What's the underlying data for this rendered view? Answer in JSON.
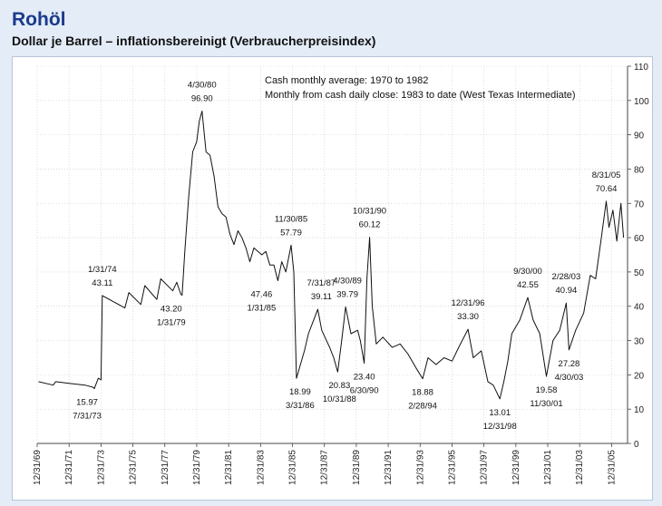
{
  "title": "Rohöl",
  "subtitle": "Dollar je Barrel – inflationsbereinigt (Verbraucherpreisindex)",
  "chart_data": {
    "type": "line",
    "notes": [
      "Cash monthly average: 1970 to 1982",
      "Monthly from cash daily close: 1983 to date (West Texas Intermediate)"
    ],
    "x_range": [
      "1969-12-31",
      "2006-12-31"
    ],
    "ylim": [
      0,
      110
    ],
    "y_ticks": [
      0,
      10,
      20,
      30,
      40,
      50,
      60,
      70,
      80,
      90,
      100,
      110
    ],
    "x_tick_labels": [
      "12/31/69",
      "12/31/71",
      "12/31/73",
      "12/31/75",
      "12/31/77",
      "12/31/79",
      "12/31/81",
      "12/31/83",
      "12/31/85",
      "12/31/87",
      "12/31/89",
      "12/31/91",
      "12/31/93",
      "12/31/95",
      "12/31/97",
      "12/31/99",
      "12/31/01",
      "12/31/03",
      "12/31/05"
    ],
    "y_axis_side": "right",
    "grid": true,
    "line_color": "#111111",
    "series": [
      {
        "x": [
          "1970-01-31",
          "1970-12-31",
          "1971-02-28",
          "1971-12-31",
          "1972-12-31",
          "1973-06-30",
          "1973-07-31",
          "1973-10-31",
          "1973-12-31",
          "1974-01-31",
          "1975-06-30",
          "1975-09-30",
          "1976-06-30",
          "1976-09-30",
          "1977-06-30",
          "1977-09-30",
          "1978-06-30",
          "1978-09-30",
          "1978-12-31",
          "1979-01-31",
          "1979-03-31",
          "1979-06-30",
          "1979-09-30",
          "1979-12-31",
          "1980-02-29",
          "1980-04-30",
          "1980-07-31",
          "1980-10-31",
          "1981-01-31",
          "1981-04-30",
          "1981-07-31",
          "1981-10-31",
          "1982-01-31",
          "1982-04-30",
          "1982-07-31",
          "1982-10-31",
          "1983-01-31",
          "1983-04-30",
          "1983-07-31",
          "1983-10-31",
          "1984-01-31",
          "1984-04-30",
          "1984-07-31",
          "1984-10-31",
          "1985-01-31",
          "1985-04-30",
          "1985-07-31",
          "1985-11-30",
          "1986-01-31",
          "1986-03-31",
          "1986-06-30",
          "1986-09-30",
          "1986-12-31",
          "1987-04-30",
          "1987-07-31",
          "1987-10-31",
          "1988-04-30",
          "1988-07-31",
          "1988-10-31",
          "1989-01-31",
          "1989-04-30",
          "1989-08-31",
          "1990-01-31",
          "1990-03-31",
          "1990-06-30",
          "1990-08-31",
          "1990-10-31",
          "1990-12-31",
          "1991-03-31",
          "1991-08-31",
          "1992-03-31",
          "1992-09-30",
          "1993-03-31",
          "1993-09-30",
          "1994-02-28",
          "1994-06-30",
          "1994-12-31",
          "1995-06-30",
          "1995-12-31",
          "1996-05-31",
          "1996-12-31",
          "1997-04-30",
          "1997-10-31",
          "1998-03-31",
          "1998-07-31",
          "1998-12-31",
          "1999-03-31",
          "1999-06-30",
          "1999-09-30",
          "2000-03-31",
          "2000-09-30",
          "2001-01-31",
          "2001-06-30",
          "2001-11-30",
          "2002-04-30",
          "2002-09-30",
          "2003-02-28",
          "2003-04-30",
          "2003-09-30",
          "2004-03-31",
          "2004-08-31",
          "2004-12-31",
          "2005-04-30",
          "2005-08-31",
          "2005-10-31",
          "2006-01-31",
          "2006-04-30",
          "2006-07-31",
          "2006-09-30"
        ],
        "values": [
          18.0,
          17.0,
          18.0,
          17.5,
          17.0,
          16.4,
          15.97,
          19.0,
          18.5,
          43.11,
          39.5,
          44.0,
          40.5,
          46.0,
          42.0,
          48.0,
          44.5,
          47.0,
          43.5,
          43.2,
          56.0,
          72.0,
          85.0,
          88.0,
          94.0,
          96.9,
          85.0,
          84.0,
          78.0,
          69.0,
          67.0,
          66.0,
          61.0,
          58.0,
          62.0,
          60.0,
          57.0,
          53.0,
          57.0,
          56.0,
          55.0,
          56.0,
          52.0,
          52.0,
          47.46,
          53.0,
          50.0,
          57.79,
          50.0,
          18.99,
          23.0,
          27.0,
          32.0,
          36.0,
          39.11,
          33.0,
          28.0,
          25.0,
          20.83,
          30.0,
          39.79,
          32.0,
          33.0,
          30.0,
          23.4,
          48.0,
          60.12,
          40.0,
          29.0,
          31.0,
          28.0,
          29.0,
          26.0,
          22.0,
          18.88,
          25.0,
          23.0,
          25.0,
          24.0,
          28.0,
          33.3,
          25.0,
          27.0,
          18.0,
          17.0,
          13.01,
          18.0,
          24.0,
          32.0,
          36.0,
          42.55,
          36.0,
          32.0,
          19.58,
          30.0,
          33.0,
          40.94,
          27.28,
          33.0,
          38.0,
          49.0,
          48.0,
          59.0,
          70.64,
          63.0,
          68.0,
          59.0,
          70.0,
          60.0
        ]
      }
    ],
    "annotations": [
      {
        "date": "4/30/80",
        "value": "96.90"
      },
      {
        "date": "1/31/74",
        "value": "43.11"
      },
      {
        "date": "1/31/79",
        "value": "43.20"
      },
      {
        "date": "7/31/73",
        "value": "15.97"
      },
      {
        "date": "11/30/85",
        "value": "57.79"
      },
      {
        "date": "1/31/85",
        "value": "47.46"
      },
      {
        "date": "3/31/86",
        "value": "18.99"
      },
      {
        "date": "7/31/87",
        "value": "39.11"
      },
      {
        "date": "4/30/89",
        "value": "39.79"
      },
      {
        "date": "10/31/88",
        "value": "20.83"
      },
      {
        "date": "10/31/90",
        "value": "60.12"
      },
      {
        "date": "6/30/90",
        "value": "23.40"
      },
      {
        "date": "2/28/94",
        "value": "18.88"
      },
      {
        "date": "12/31/96",
        "value": "33.30"
      },
      {
        "date": "12/31/98",
        "value": "13.01"
      },
      {
        "date": "9/30/00",
        "value": "42.55"
      },
      {
        "date": "11/30/01",
        "value": "19.58"
      },
      {
        "date": "2/28/03",
        "value": "40.94"
      },
      {
        "date": "4/30/03",
        "value": "27.28"
      },
      {
        "date": "8/31/05",
        "value": "70.64"
      }
    ]
  }
}
